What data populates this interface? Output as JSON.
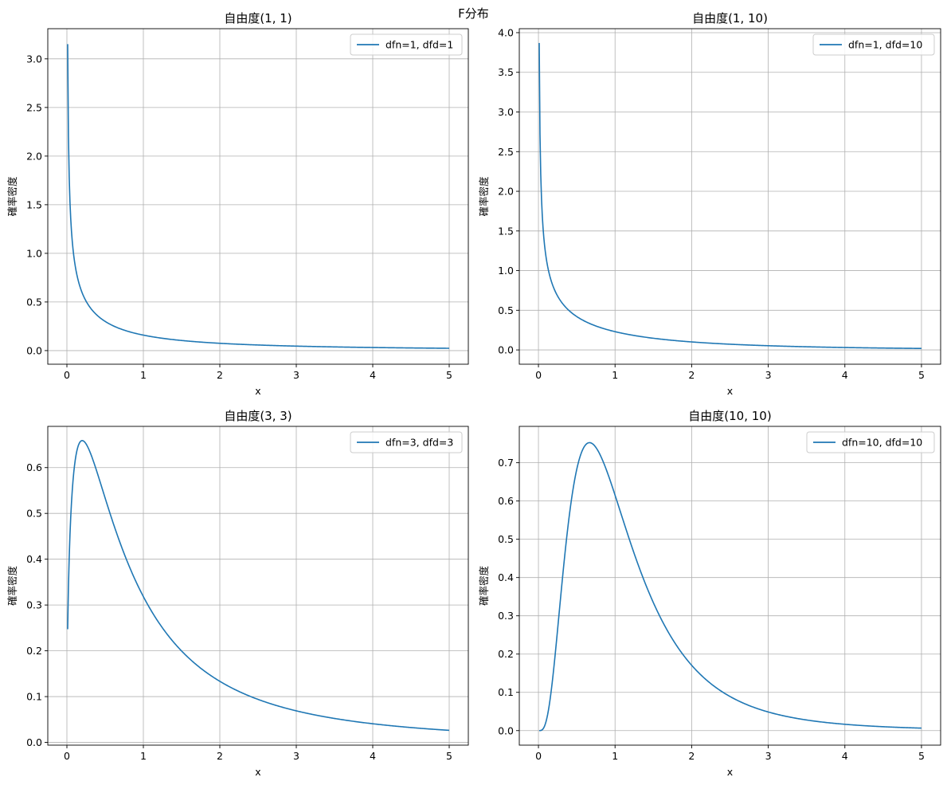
{
  "figure_title": "F分布",
  "colors": {
    "series": "#1f77b4",
    "grid": "#b0b0b0",
    "axis": "#000000",
    "legend_border": "#cccccc"
  },
  "chart_data": [
    {
      "type": "line",
      "title": "自由度(1, 1)",
      "xlabel": "x",
      "ylabel": "確率密度",
      "xlim": [
        -0.25,
        5.25
      ],
      "ylim": [
        -0.14,
        3.31
      ],
      "xticks": [
        0,
        1,
        2,
        3,
        4,
        5
      ],
      "yticks": [
        0.0,
        0.5,
        1.0,
        1.5,
        2.0,
        2.5,
        3.0
      ],
      "ytick_format": 1,
      "grid": true,
      "legend": "top-right",
      "series": [
        {
          "name": "dfn=1, dfd=1",
          "dfn": 1,
          "dfd": 1,
          "x_range": [
            0.01,
            5
          ],
          "color": "#1f77b4"
        }
      ]
    },
    {
      "type": "line",
      "title": "自由度(1, 10)",
      "xlabel": "x",
      "ylabel": "確率密度",
      "xlim": [
        -0.25,
        5.25
      ],
      "ylim": [
        -0.18,
        4.05
      ],
      "xticks": [
        0,
        1,
        2,
        3,
        4,
        5
      ],
      "yticks": [
        0.0,
        0.5,
        1.0,
        1.5,
        2.0,
        2.5,
        3.0,
        3.5,
        4.0
      ],
      "ytick_format": 1,
      "grid": true,
      "legend": "top-right",
      "series": [
        {
          "name": "dfn=1, dfd=10",
          "dfn": 1,
          "dfd": 10,
          "x_range": [
            0.01,
            5
          ],
          "color": "#1f77b4"
        }
      ]
    },
    {
      "type": "line",
      "title": "自由度(3, 3)",
      "xlabel": "x",
      "ylabel": "確率密度",
      "xlim": [
        -0.25,
        5.25
      ],
      "ylim": [
        -0.006,
        0.69
      ],
      "xticks": [
        0,
        1,
        2,
        3,
        4,
        5
      ],
      "yticks": [
        0.0,
        0.1,
        0.2,
        0.3,
        0.4,
        0.5,
        0.6
      ],
      "ytick_format": 1,
      "grid": true,
      "legend": "top-right",
      "series": [
        {
          "name": "dfn=3, dfd=3",
          "dfn": 3,
          "dfd": 3,
          "x_range": [
            0.01,
            5
          ],
          "color": "#1f77b4"
        }
      ]
    },
    {
      "type": "line",
      "title": "自由度(10, 10)",
      "xlabel": "x",
      "ylabel": "確率密度",
      "xlim": [
        -0.25,
        5.25
      ],
      "ylim": [
        -0.038,
        0.795
      ],
      "xticks": [
        0,
        1,
        2,
        3,
        4,
        5
      ],
      "yticks": [
        0.0,
        0.1,
        0.2,
        0.3,
        0.4,
        0.5,
        0.6,
        0.7
      ],
      "ytick_format": 1,
      "grid": true,
      "legend": "top-right",
      "series": [
        {
          "name": "dfn=10, dfd=10",
          "dfn": 10,
          "dfd": 10,
          "x_range": [
            0.01,
            5
          ],
          "color": "#1f77b4"
        }
      ]
    }
  ]
}
